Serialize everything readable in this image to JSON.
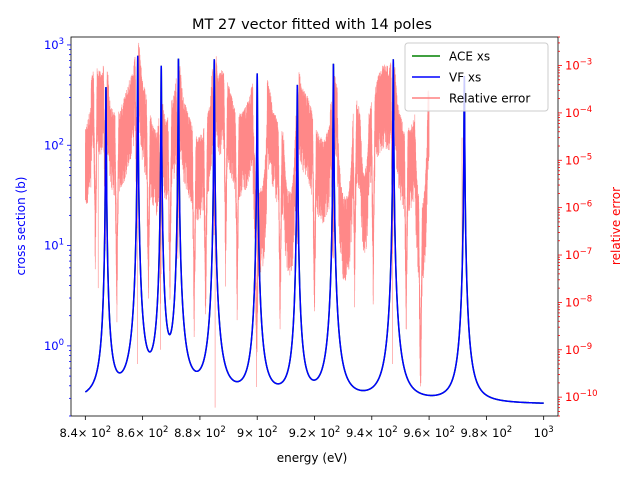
{
  "chart_data": {
    "type": "line",
    "title": "MT 27 vector fitted with 14 poles",
    "xlabel": "energy (eV)",
    "ylabel_left": "cross section (b)",
    "ylabel_right": "relative error",
    "x_scale": "linear",
    "y_left_scale": "log",
    "y_right_scale": "log",
    "xlim": [
      835,
      1005
    ],
    "ylim_left": [
      0.2,
      1200
    ],
    "ylim_right": [
      4e-11,
      0.004
    ],
    "x_ticks": [
      {
        "value": 840,
        "base": "8.4",
        "label": "× 10",
        "exp": "2"
      },
      {
        "value": 860,
        "base": "8.6",
        "label": "× 10",
        "exp": "2"
      },
      {
        "value": 880,
        "base": "8.8",
        "label": "× 10",
        "exp": "2"
      },
      {
        "value": 900,
        "base": "9",
        "label": "× 10",
        "exp": "2"
      },
      {
        "value": 920,
        "base": "9.2",
        "label": "× 10",
        "exp": "2"
      },
      {
        "value": 940,
        "base": "9.4",
        "label": "× 10",
        "exp": "2"
      },
      {
        "value": 960,
        "base": "9.6",
        "label": "× 10",
        "exp": "2"
      },
      {
        "value": 980,
        "base": "9.8",
        "label": "× 10",
        "exp": "2"
      },
      {
        "value": 1000,
        "base": "10",
        "label": "",
        "exp": "3"
      }
    ],
    "y_left_ticks": [
      {
        "value": 1,
        "base": "10",
        "exp": "0"
      },
      {
        "value": 10,
        "base": "10",
        "exp": "1"
      },
      {
        "value": 100,
        "base": "10",
        "exp": "2"
      },
      {
        "value": 1000,
        "base": "10",
        "exp": "3"
      }
    ],
    "y_right_ticks": [
      {
        "value": 1e-10,
        "base": "10",
        "exp": "−10"
      },
      {
        "value": 1e-09,
        "base": "10",
        "exp": "−9"
      },
      {
        "value": 1e-08,
        "base": "10",
        "exp": "−8"
      },
      {
        "value": 1e-07,
        "base": "10",
        "exp": "−7"
      },
      {
        "value": 1e-06,
        "base": "10",
        "exp": "−6"
      },
      {
        "value": 1e-05,
        "base": "10",
        "exp": "−5"
      },
      {
        "value": 0.0001,
        "base": "10",
        "exp": "−4"
      },
      {
        "value": 0.001,
        "base": "10",
        "exp": "−3"
      }
    ],
    "resonances": [
      {
        "energy": 847.2,
        "peak": 380
      },
      {
        "energy": 858.3,
        "peak": 780
      },
      {
        "energy": 866.5,
        "peak": 620
      },
      {
        "energy": 872.5,
        "peak": 730
      },
      {
        "energy": 885.0,
        "peak": 720
      },
      {
        "energy": 900.0,
        "peak": 520
      },
      {
        "energy": 914.0,
        "peak": 400
      },
      {
        "energy": 926.6,
        "peak": 650
      },
      {
        "energy": 947.5,
        "peak": 720
      },
      {
        "energy": 972.3,
        "peak": 490
      }
    ],
    "background_xs": [
      0.27,
      0.26
    ],
    "error_level": 3e-05,
    "series": [
      {
        "name": "ACE xs",
        "color": "#008000",
        "axis": "left"
      },
      {
        "name": "VF xs",
        "color": "#0000ff",
        "axis": "left"
      },
      {
        "name": "Relative error",
        "color": "#ff8080",
        "axis": "right"
      }
    ],
    "legend_position": "top-right",
    "grid": false
  }
}
